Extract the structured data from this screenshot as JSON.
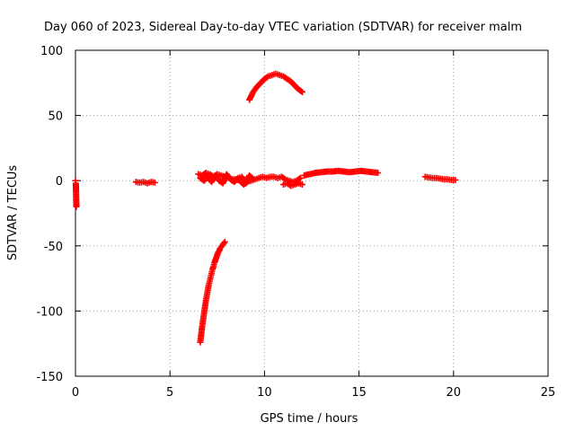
{
  "chart_data": {
    "type": "scatter",
    "title": "Day 060 of 2023, Sidereal Day-to-day VTEC variation (SDTVAR) for receiver malm",
    "xlabel": "GPS time / hours",
    "ylabel": "SDTVAR / TECUs",
    "xlim": [
      0,
      25
    ],
    "ylim": [
      -150,
      100
    ],
    "xticks": [
      0,
      5,
      10,
      15,
      20,
      25
    ],
    "yticks": [
      -150,
      -100,
      -50,
      0,
      50,
      100
    ],
    "grid": true,
    "marker": "+",
    "series": [
      {
        "name": "SDTVAR",
        "color": "#ff0000",
        "segments": [
          {
            "x": [
              0.0,
              0.02,
              0.05
            ],
            "y": [
              0,
              -2,
              -20
            ]
          },
          {
            "x": [
              3.2,
              3.4,
              3.6,
              3.8,
              4.0,
              4.2
            ],
            "y": [
              -1,
              -1.5,
              -1,
              -2,
              -1,
              -1.5
            ]
          },
          {
            "x": [
              6.5,
              6.7,
              6.9,
              7.1,
              7.3,
              7.5,
              7.7,
              7.9,
              8.1,
              8.3,
              8.5,
              8.7,
              8.9,
              9.1,
              9.3,
              9.5,
              9.7,
              9.9,
              10.1,
              10.3,
              10.5,
              10.7,
              10.9,
              11.1,
              11.3,
              11.5,
              11.7,
              11.9
            ],
            "y": [
              5,
              4,
              6,
              5,
              3,
              5,
              4,
              3,
              2,
              1,
              1,
              0,
              -3,
              -1,
              0,
              1,
              2,
              3,
              2,
              3,
              3,
              2,
              3,
              1,
              0,
              -1,
              0,
              2
            ]
          },
          {
            "x": [
              6.6,
              6.8,
              7.0,
              7.2,
              7.4,
              7.6,
              7.8,
              8.0,
              8.2,
              8.4,
              8.6,
              8.8,
              9.0,
              9.2,
              9.4
            ],
            "y": [
              2,
              0,
              3,
              -1,
              4,
              0,
              -2,
              5,
              1,
              -1,
              2,
              3,
              -2,
              4,
              1
            ]
          },
          {
            "x": [
              11.0,
              11.2,
              11.4,
              11.6,
              11.8,
              12.0
            ],
            "y": [
              -3,
              -2,
              -4,
              -3,
              -2,
              -3
            ]
          },
          {
            "x": [
              6.6,
              6.65,
              6.7,
              6.75,
              6.8,
              6.85,
              6.9,
              6.95,
              7.0,
              7.05,
              7.1,
              7.15,
              7.2,
              7.25,
              7.3,
              7.35,
              7.4,
              7.45,
              7.5,
              7.55,
              7.6,
              7.65,
              7.7,
              7.75,
              7.8,
              7.85,
              7.9
            ],
            "y": [
              -124,
              -118,
              -112,
              -107,
              -102,
              -97,
              -92,
              -88,
              -84,
              -80,
              -77,
              -74,
              -71,
              -68,
              -66,
              -63,
              -61,
              -59,
              -57,
              -55,
              -54,
              -52,
              -51,
              -50,
              -49,
              -48,
              -47
            ]
          },
          {
            "x": [
              9.2,
              9.4,
              9.6,
              9.8,
              10.0,
              10.2,
              10.4,
              10.6,
              10.8,
              11.0,
              11.2,
              11.4,
              11.6,
              11.8,
              12.0
            ],
            "y": [
              62,
              68,
              72,
              75,
              78,
              80,
              81,
              82,
              81,
              80,
              78,
              76,
              73,
              70,
              68
            ]
          },
          {
            "x": [
              12.1,
              12.4,
              12.7,
              13.0,
              13.3,
              13.6,
              13.9,
              14.2,
              14.5,
              14.8,
              15.1,
              15.4,
              15.7,
              16.0
            ],
            "y": [
              4,
              5,
              6,
              6.5,
              7,
              7,
              7.5,
              7,
              6.5,
              7,
              7.5,
              7,
              6.5,
              6
            ]
          },
          {
            "x": [
              18.5,
              18.7,
              18.9,
              19.1,
              19.3,
              19.5,
              19.7,
              19.9,
              20.1
            ],
            "y": [
              3,
              2.5,
              2,
              2,
              1.5,
              1,
              1,
              0.5,
              0.5
            ]
          }
        ]
      }
    ]
  }
}
